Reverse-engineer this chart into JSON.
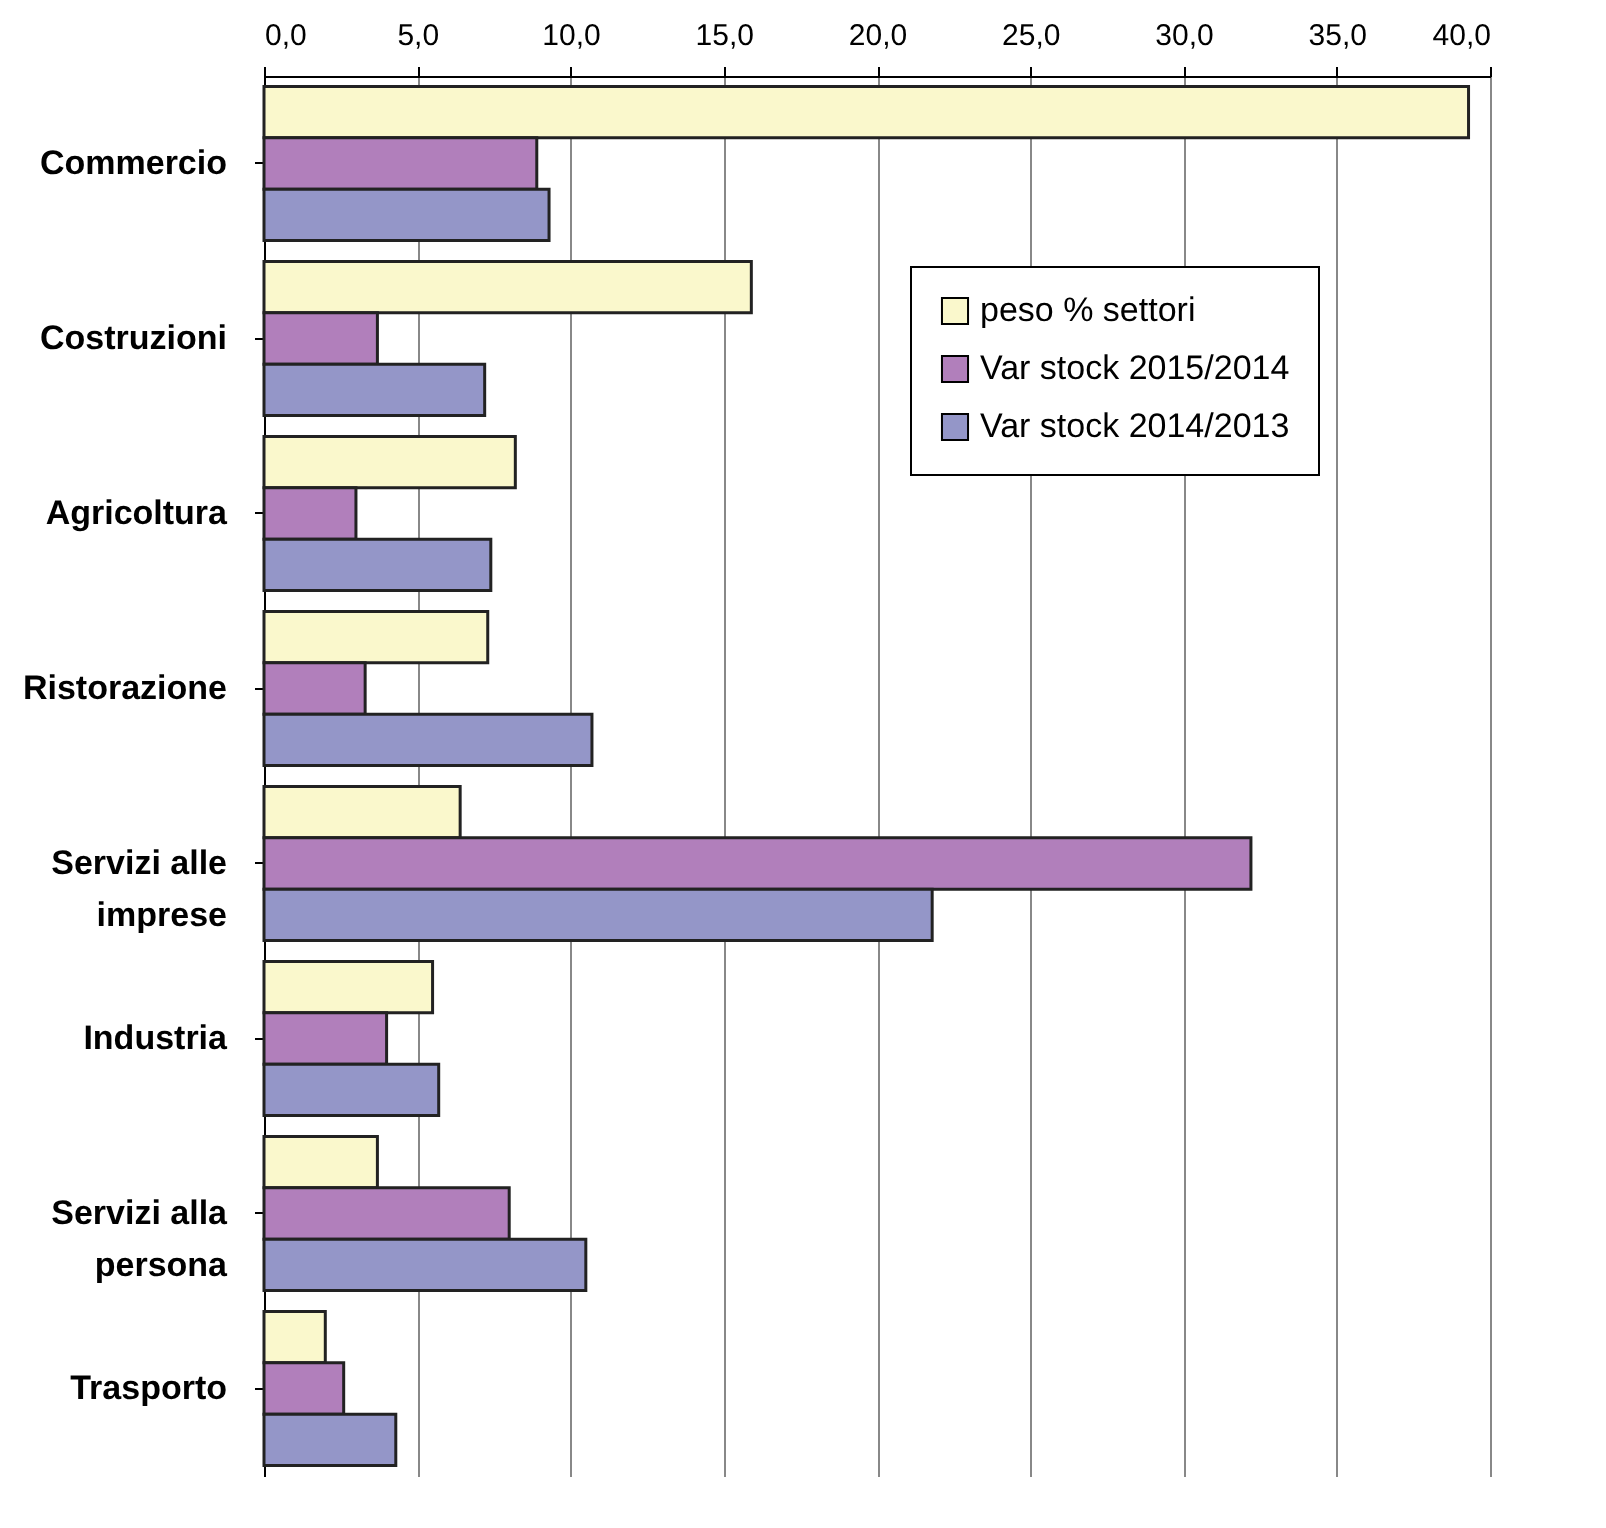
{
  "chart_data": {
    "type": "bar",
    "orientation": "horizontal",
    "categories": [
      "Commercio",
      "Costruzioni",
      "Agricoltura",
      "Ristorazione",
      "Servizi alle imprese",
      "Industria",
      "Servizi alla persona",
      "Trasporto"
    ],
    "series": [
      {
        "name": "peso % settori",
        "color": "#faf8cc",
        "values": [
          39.3,
          15.9,
          8.2,
          7.3,
          6.4,
          5.5,
          3.7,
          2.0
        ]
      },
      {
        "name": "Var stock 2015/2014",
        "color": "#b17fbb",
        "values": [
          8.9,
          3.7,
          3.0,
          3.3,
          32.2,
          4.0,
          8.0,
          2.6
        ]
      },
      {
        "name": "Var stock 2014/2013",
        "color": "#9496c8",
        "values": [
          9.3,
          7.2,
          7.4,
          10.7,
          21.8,
          5.7,
          10.5,
          4.3
        ]
      }
    ],
    "xlim": [
      0,
      40
    ],
    "xticks": [
      {
        "value": 0,
        "label": "0,0"
      },
      {
        "value": 5,
        "label": "5,0"
      },
      {
        "value": 10,
        "label": "10,0"
      },
      {
        "value": 15,
        "label": "15,0"
      },
      {
        "value": 20,
        "label": "20,0"
      },
      {
        "value": 25,
        "label": "25,0"
      },
      {
        "value": 30,
        "label": "30,0"
      },
      {
        "value": 35,
        "label": "35,0"
      },
      {
        "value": 40,
        "label": "40,0"
      }
    ],
    "grid": "x",
    "legend": "top right"
  }
}
